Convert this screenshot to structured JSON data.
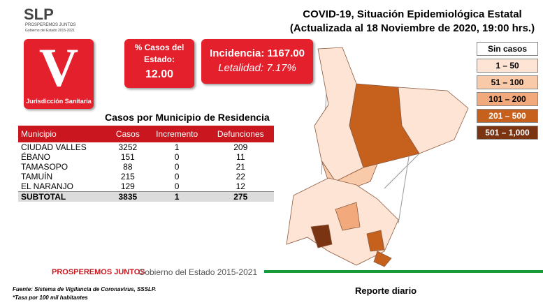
{
  "header": {
    "logo": "SLP",
    "logo_tagline": "PROSPEREMOS JUNTOS",
    "logo_sub": "Gobierno del Estado 2015-2021",
    "title": "COVID-19, Situación Epidemiológica Estatal",
    "subtitle": "(Actualizada al 18 Noviembre de 2020, 19:00 hrs.)"
  },
  "jurisdiction": {
    "letter": "V",
    "label": "Jurisdicción Sanitaria"
  },
  "percent_box": {
    "label": "% Casos del Estado:",
    "value": "12.00"
  },
  "rates_box": {
    "incidence": "Incidencia: 1167.00",
    "lethality": "Letalidad: 7.17%"
  },
  "legend": [
    {
      "label": "Sin casos",
      "color": "#ffffff",
      "text": "#000000"
    },
    {
      "label": "1 – 50",
      "color": "#fde4d4",
      "text": "#000000"
    },
    {
      "label": "51 – 100",
      "color": "#f9caa9",
      "text": "#000000"
    },
    {
      "label": "101 – 200",
      "color": "#f2aa7c",
      "text": "#000000"
    },
    {
      "label": "201 – 500",
      "color": "#c5601d",
      "text": "#ffffff"
    },
    {
      "label": "501 – 1,000",
      "color": "#7a3412",
      "text": "#ffffff"
    }
  ],
  "table": {
    "title": "Casos por Municipio  de Residencia",
    "columns": [
      "Municipio",
      "Casos",
      "Incremento",
      "Defunciones"
    ],
    "rows": [
      [
        "CIUDAD VALLES",
        "3252",
        "1",
        "209"
      ],
      [
        "ÉBANO",
        "151",
        "0",
        "11"
      ],
      [
        "TAMASOPO",
        "88",
        "0",
        "21"
      ],
      [
        "TAMUÍN",
        "215",
        "0",
        "22"
      ],
      [
        "EL NARANJO",
        "129",
        "0",
        "12"
      ]
    ],
    "subtotal": [
      "SUBTOTAL",
      "3835",
      "1",
      "275"
    ]
  },
  "footer": {
    "brand": "PROSPEREMOS JUNTOS",
    "brand_sub": "Gobierno del Estado 2015-2021",
    "source": "Fuente: Sistema de Vigilancia de Coronavirus, SSSLP.",
    "note": "*Tasa por 100 mil habitantes",
    "report": "Reporte diario"
  }
}
